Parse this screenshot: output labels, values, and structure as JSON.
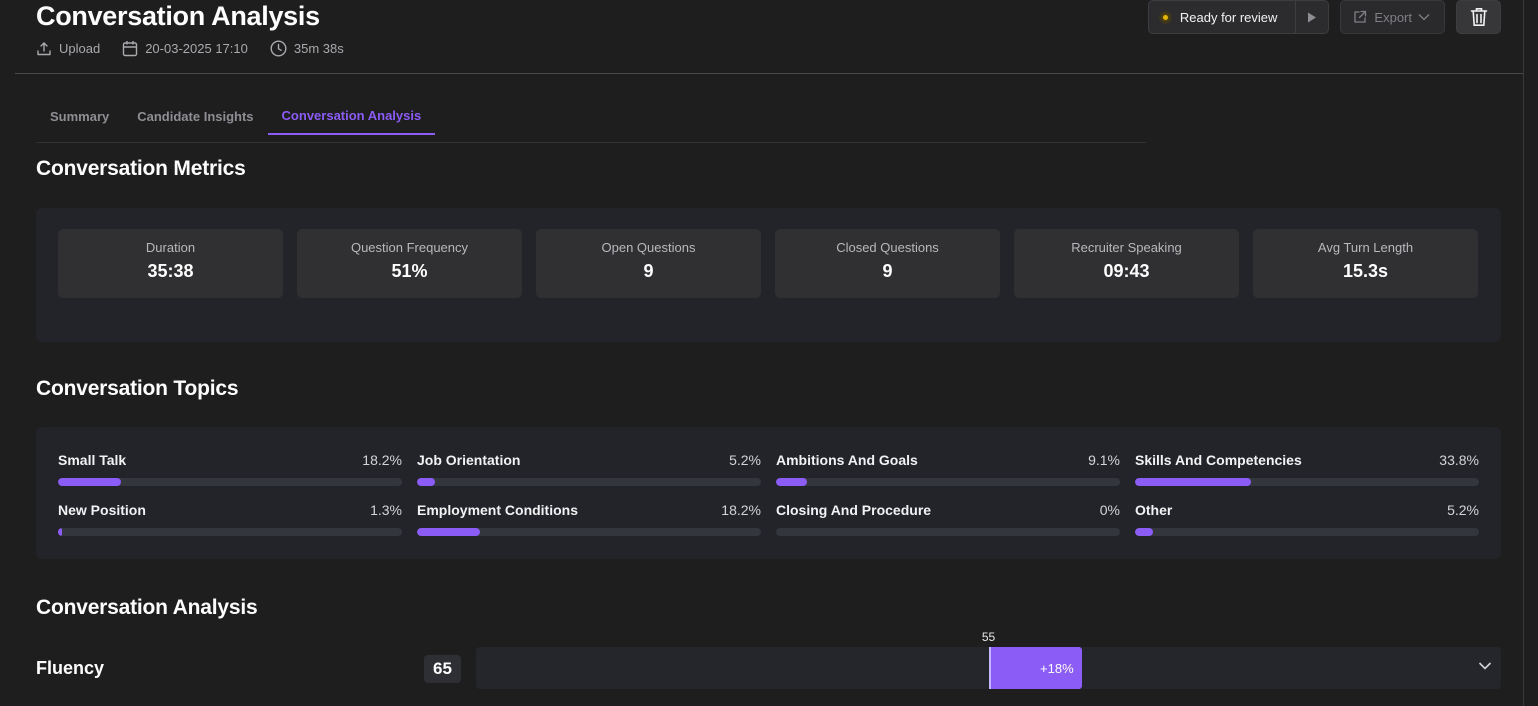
{
  "header": {
    "title": "Conversation Analysis",
    "meta": {
      "source": "Upload",
      "datetime": "20-03-2025 17:10",
      "duration": "35m 38s"
    },
    "status_label": "Ready for review",
    "status_color": "#e6b600",
    "export_label": "Export"
  },
  "tabs": [
    {
      "label": "Summary",
      "active": false
    },
    {
      "label": "Candidate Insights",
      "active": false
    },
    {
      "label": "Conversation Analysis",
      "active": true
    }
  ],
  "metrics": {
    "title": "Conversation Metrics",
    "items": [
      {
        "label": "Duration",
        "value": "35:38"
      },
      {
        "label": "Question Frequency",
        "value": "51%"
      },
      {
        "label": "Open Questions",
        "value": "9"
      },
      {
        "label": "Closed Questions",
        "value": "9"
      },
      {
        "label": "Recruiter Speaking",
        "value": "09:43"
      },
      {
        "label": "Avg Turn Length",
        "value": "15.3s"
      }
    ]
  },
  "topics": {
    "title": "Conversation Topics",
    "items": [
      {
        "name": "Small Talk",
        "percent_label": "18.2%",
        "fill_fraction": 0.182
      },
      {
        "name": "Job Orientation",
        "percent_label": "5.2%",
        "fill_fraction": 0.052
      },
      {
        "name": "Ambitions And Goals",
        "percent_label": "9.1%",
        "fill_fraction": 0.091
      },
      {
        "name": "Skills And Competencies",
        "percent_label": "33.8%",
        "fill_fraction": 0.338
      },
      {
        "name": "New Position",
        "percent_label": "1.3%",
        "fill_fraction": 0.013
      },
      {
        "name": "Employment Conditions",
        "percent_label": "18.2%",
        "fill_fraction": 0.182
      },
      {
        "name": "Closing And Procedure",
        "percent_label": "0%",
        "fill_fraction": 0.0
      },
      {
        "name": "Other",
        "percent_label": "5.2%",
        "fill_fraction": 0.052
      }
    ]
  },
  "analysis": {
    "title": "Conversation Analysis",
    "fluency": {
      "label": "Fluency",
      "score": "65",
      "benchmark": "55",
      "delta": "+18%",
      "score_value": 65,
      "benchmark_value": 55,
      "scale_max": 110
    }
  },
  "colors": {
    "accent": "#8b5cf6",
    "background": "#1e1e1f",
    "panel": "#222429"
  }
}
